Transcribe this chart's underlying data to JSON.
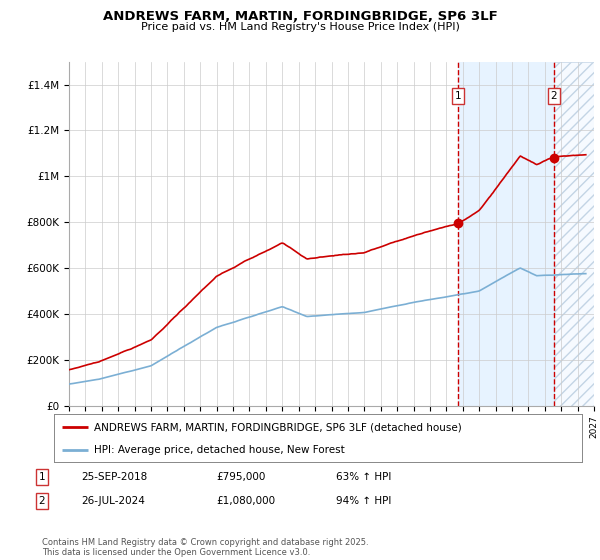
{
  "title": "ANDREWS FARM, MARTIN, FORDINGBRIDGE, SP6 3LF",
  "subtitle": "Price paid vs. HM Land Registry's House Price Index (HPI)",
  "ylim": [
    0,
    1500000
  ],
  "xlim_start": 1995,
  "xlim_end": 2027,
  "sale1_date": 2018.73,
  "sale1_price": 795000,
  "sale2_date": 2024.56,
  "sale2_price": 1080000,
  "red_line_color": "#cc0000",
  "blue_line_color": "#7bafd4",
  "legend_label_red": "ANDREWS FARM, MARTIN, FORDINGBRIDGE, SP6 3LF (detached house)",
  "legend_label_blue": "HPI: Average price, detached house, New Forest",
  "footer": "Contains HM Land Registry data © Crown copyright and database right 2025.\nThis data is licensed under the Open Government Licence v3.0.",
  "background_color": "#ffffff",
  "grid_color": "#cccccc"
}
